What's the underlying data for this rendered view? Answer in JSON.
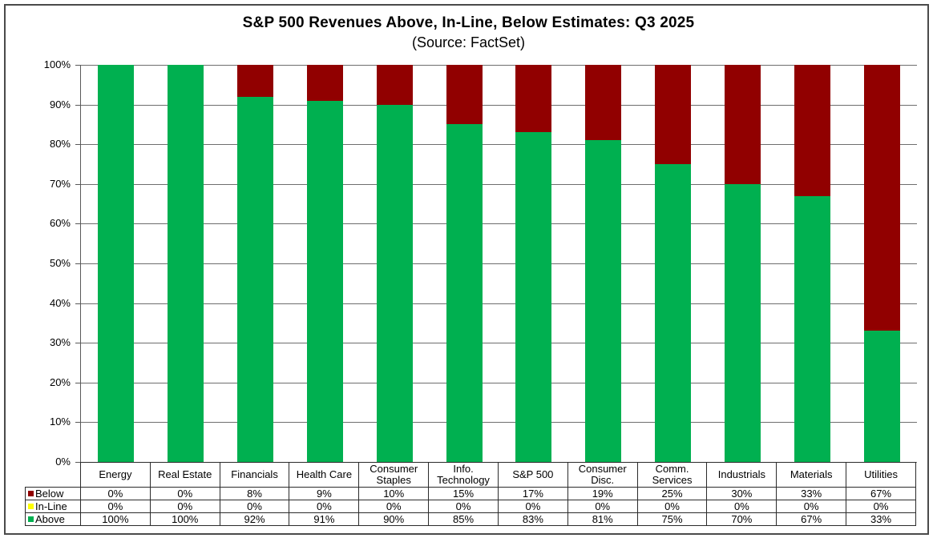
{
  "chart_data": {
    "type": "bar",
    "stacked": true,
    "title": "S&P 500 Revenues Above, In-Line, Below Estimates: Q3 2025",
    "subtitle": "(Source: FactSet)",
    "categories": [
      "Energy",
      "Real Estate",
      "Financials",
      "Health Care",
      "Consumer Staples",
      "Info. Technology",
      "S&P 500",
      "Consumer Disc.",
      "Comm. Services",
      "Industrials",
      "Materials",
      "Utilities"
    ],
    "series": [
      {
        "name": "Below",
        "color": "#910000",
        "values": [
          0,
          0,
          8,
          9,
          10,
          15,
          17,
          19,
          25,
          30,
          33,
          67
        ]
      },
      {
        "name": "In-Line",
        "color": "#FFFF00",
        "values": [
          0,
          0,
          0,
          0,
          0,
          0,
          0,
          0,
          0,
          0,
          0,
          0
        ]
      },
      {
        "name": "Above",
        "color": "#00B050",
        "values": [
          100,
          100,
          92,
          91,
          90,
          85,
          83,
          81,
          75,
          70,
          67,
          33
        ]
      }
    ],
    "table_row_order": [
      "Below",
      "In-Line",
      "Above"
    ],
    "stack_order_bottom_to_top": [
      "Above",
      "In-Line",
      "Below"
    ],
    "value_suffix": "%",
    "ylim": [
      0,
      100
    ],
    "y_ticks": [
      "100%",
      "90%",
      "80%",
      "70%",
      "60%",
      "50%",
      "40%",
      "30%",
      "20%",
      "10%",
      "0%"
    ],
    "grid": true,
    "legend_position": "data-table-left",
    "colors": {
      "gridline": "#6e6e6e",
      "axis": "#595959",
      "table_border": "#2b2b2b",
      "frame_border": "#4a4a4a",
      "text": "#000000",
      "background": "#ffffff"
    }
  }
}
